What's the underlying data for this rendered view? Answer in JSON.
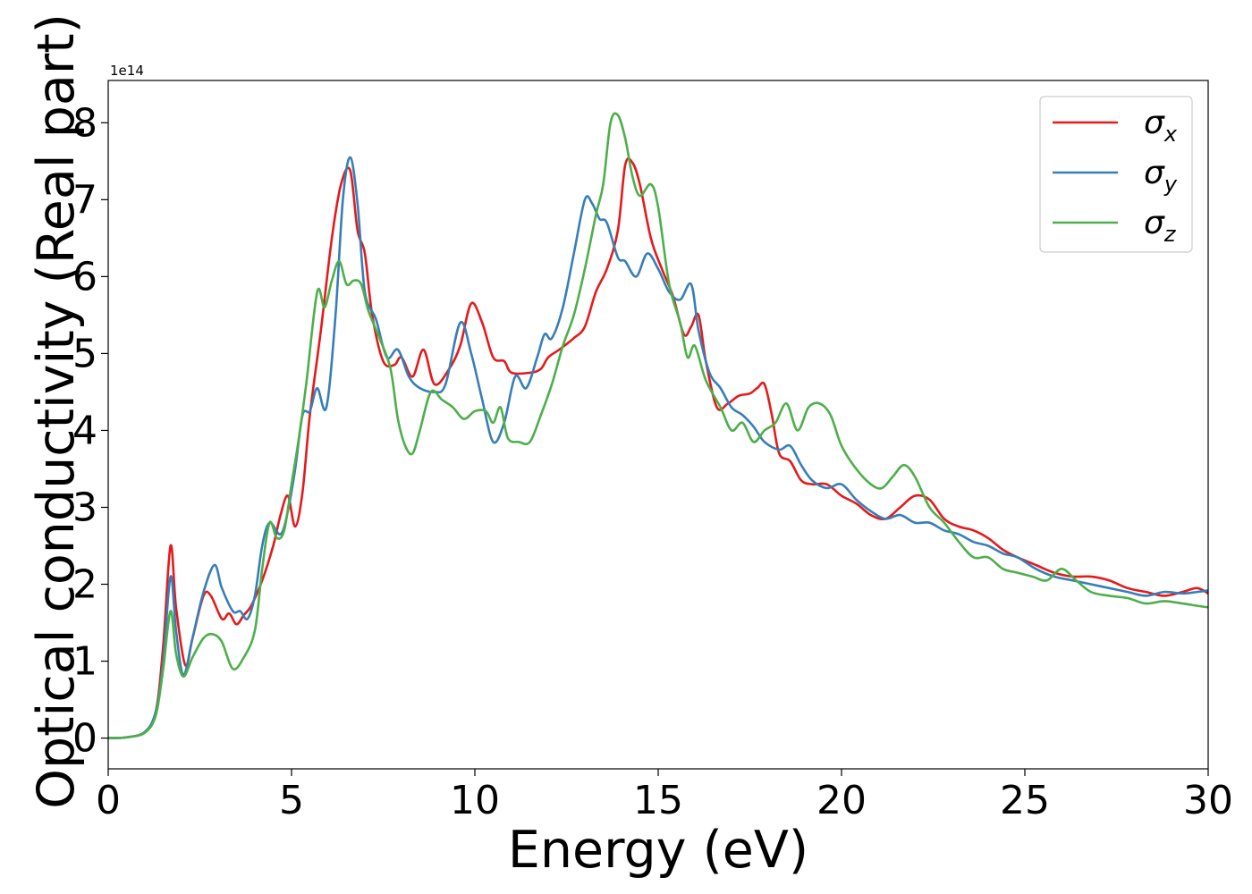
{
  "chart_data": {
    "type": "line",
    "title": "",
    "xlabel": "Energy (eV)",
    "ylabel": "Optical conductivity (Real part)",
    "y_offset_label": "1e14",
    "xlim": [
      0,
      30
    ],
    "ylim": [
      -0.4,
      8.55
    ],
    "y_scale": 100000000000000.0,
    "grid": false,
    "legend_position": "top-right",
    "x_ticks": [
      0,
      5,
      10,
      15,
      20,
      25,
      30
    ],
    "y_ticks": [
      0,
      1,
      2,
      3,
      4,
      5,
      6,
      7,
      8
    ],
    "x_tick_labels": [
      "0",
      "5",
      "10",
      "15",
      "20",
      "25",
      "30"
    ],
    "y_tick_labels": [
      "0",
      "1",
      "2",
      "3",
      "4",
      "5",
      "6",
      "7",
      "8"
    ],
    "series": [
      {
        "name": "σx",
        "legend_symbol": "σ",
        "legend_subscript": "x",
        "color": "#e41a1c",
        "points": [
          [
            0,
            0
          ],
          [
            0.5,
            0.01
          ],
          [
            1.0,
            0.08
          ],
          [
            1.3,
            0.35
          ],
          [
            1.5,
            1.2
          ],
          [
            1.7,
            2.5
          ],
          [
            1.85,
            1.7
          ],
          [
            2.1,
            0.95
          ],
          [
            2.3,
            1.3
          ],
          [
            2.6,
            1.85
          ],
          [
            2.8,
            1.85
          ],
          [
            3.1,
            1.55
          ],
          [
            3.3,
            1.62
          ],
          [
            3.5,
            1.48
          ],
          [
            3.7,
            1.6
          ],
          [
            3.9,
            1.72
          ],
          [
            4.2,
            2.05
          ],
          [
            4.5,
            2.5
          ],
          [
            4.7,
            2.9
          ],
          [
            4.9,
            3.15
          ],
          [
            5.1,
            2.75
          ],
          [
            5.3,
            3.2
          ],
          [
            5.5,
            4.2
          ],
          [
            5.8,
            5.3
          ],
          [
            6.1,
            6.5
          ],
          [
            6.35,
            7.2
          ],
          [
            6.6,
            7.38
          ],
          [
            6.8,
            6.6
          ],
          [
            7.0,
            6.3
          ],
          [
            7.2,
            5.5
          ],
          [
            7.5,
            4.9
          ],
          [
            7.8,
            4.85
          ],
          [
            8.0,
            4.95
          ],
          [
            8.3,
            4.7
          ],
          [
            8.6,
            5.05
          ],
          [
            8.9,
            4.6
          ],
          [
            9.3,
            4.8
          ],
          [
            9.6,
            5.1
          ],
          [
            9.9,
            5.65
          ],
          [
            10.2,
            5.4
          ],
          [
            10.5,
            4.95
          ],
          [
            10.8,
            4.9
          ],
          [
            11.0,
            4.75
          ],
          [
            11.5,
            4.75
          ],
          [
            11.8,
            4.8
          ],
          [
            12.0,
            4.95
          ],
          [
            12.3,
            5.05
          ],
          [
            12.7,
            5.2
          ],
          [
            13.0,
            5.35
          ],
          [
            13.3,
            5.8
          ],
          [
            13.6,
            6.1
          ],
          [
            13.9,
            6.6
          ],
          [
            14.1,
            7.45
          ],
          [
            14.3,
            7.48
          ],
          [
            14.5,
            7.2
          ],
          [
            14.8,
            6.5
          ],
          [
            15.1,
            6.1
          ],
          [
            15.4,
            5.75
          ],
          [
            15.7,
            5.25
          ],
          [
            15.9,
            5.35
          ],
          [
            16.1,
            5.5
          ],
          [
            16.3,
            4.9
          ],
          [
            16.6,
            4.3
          ],
          [
            16.9,
            4.35
          ],
          [
            17.2,
            4.45
          ],
          [
            17.5,
            4.48
          ],
          [
            17.7,
            4.55
          ],
          [
            17.9,
            4.6
          ],
          [
            18.1,
            4.2
          ],
          [
            18.3,
            3.7
          ],
          [
            18.6,
            3.6
          ],
          [
            18.9,
            3.35
          ],
          [
            19.2,
            3.3
          ],
          [
            19.6,
            3.3
          ],
          [
            20.0,
            3.15
          ],
          [
            20.4,
            3.05
          ],
          [
            20.8,
            2.9
          ],
          [
            21.2,
            2.85
          ],
          [
            21.6,
            3.0
          ],
          [
            22.0,
            3.15
          ],
          [
            22.4,
            3.1
          ],
          [
            22.8,
            2.85
          ],
          [
            23.2,
            2.75
          ],
          [
            23.6,
            2.7
          ],
          [
            24.0,
            2.6
          ],
          [
            24.4,
            2.45
          ],
          [
            24.8,
            2.35
          ],
          [
            25.3,
            2.25
          ],
          [
            25.8,
            2.15
          ],
          [
            26.3,
            2.1
          ],
          [
            26.8,
            2.1
          ],
          [
            27.3,
            2.05
          ],
          [
            27.8,
            1.95
          ],
          [
            28.3,
            1.9
          ],
          [
            28.8,
            1.85
          ],
          [
            29.3,
            1.9
          ],
          [
            29.7,
            1.95
          ],
          [
            30.0,
            1.88
          ]
        ]
      },
      {
        "name": "σy",
        "legend_symbol": "σ",
        "legend_subscript": "y",
        "color": "#377eb8",
        "points": [
          [
            0,
            0
          ],
          [
            0.5,
            0.01
          ],
          [
            1.0,
            0.08
          ],
          [
            1.3,
            0.35
          ],
          [
            1.5,
            1.0
          ],
          [
            1.7,
            2.1
          ],
          [
            1.85,
            1.4
          ],
          [
            2.05,
            0.82
          ],
          [
            2.3,
            1.3
          ],
          [
            2.6,
            1.9
          ],
          [
            2.9,
            2.25
          ],
          [
            3.1,
            1.95
          ],
          [
            3.4,
            1.65
          ],
          [
            3.6,
            1.65
          ],
          [
            3.8,
            1.55
          ],
          [
            4.0,
            1.85
          ],
          [
            4.2,
            2.5
          ],
          [
            4.4,
            2.8
          ],
          [
            4.7,
            2.65
          ],
          [
            4.9,
            2.95
          ],
          [
            5.1,
            3.5
          ],
          [
            5.3,
            4.2
          ],
          [
            5.5,
            4.25
          ],
          [
            5.7,
            4.55
          ],
          [
            5.95,
            4.3
          ],
          [
            6.2,
            5.5
          ],
          [
            6.4,
            7.0
          ],
          [
            6.6,
            7.55
          ],
          [
            6.8,
            6.95
          ],
          [
            7.0,
            5.8
          ],
          [
            7.3,
            5.45
          ],
          [
            7.6,
            4.95
          ],
          [
            7.9,
            5.05
          ],
          [
            8.2,
            4.7
          ],
          [
            8.5,
            4.55
          ],
          [
            8.9,
            4.5
          ],
          [
            9.2,
            4.6
          ],
          [
            9.6,
            5.4
          ],
          [
            9.9,
            5.0
          ],
          [
            10.2,
            4.4
          ],
          [
            10.5,
            3.85
          ],
          [
            10.8,
            4.1
          ],
          [
            11.1,
            4.7
          ],
          [
            11.4,
            4.55
          ],
          [
            11.7,
            4.95
          ],
          [
            11.9,
            5.25
          ],
          [
            12.1,
            5.2
          ],
          [
            12.4,
            5.6
          ],
          [
            12.7,
            6.3
          ],
          [
            13.0,
            7.0
          ],
          [
            13.2,
            6.95
          ],
          [
            13.4,
            6.75
          ],
          [
            13.6,
            6.7
          ],
          [
            13.9,
            6.25
          ],
          [
            14.1,
            6.2
          ],
          [
            14.4,
            6.0
          ],
          [
            14.7,
            6.3
          ],
          [
            15.0,
            6.1
          ],
          [
            15.3,
            5.8
          ],
          [
            15.6,
            5.7
          ],
          [
            15.9,
            5.9
          ],
          [
            16.1,
            5.3
          ],
          [
            16.4,
            4.75
          ],
          [
            16.7,
            4.55
          ],
          [
            17.0,
            4.3
          ],
          [
            17.3,
            4.2
          ],
          [
            17.6,
            4.05
          ],
          [
            17.9,
            3.85
          ],
          [
            18.3,
            3.75
          ],
          [
            18.6,
            3.8
          ],
          [
            18.9,
            3.55
          ],
          [
            19.2,
            3.35
          ],
          [
            19.6,
            3.25
          ],
          [
            20.0,
            3.3
          ],
          [
            20.4,
            3.1
          ],
          [
            20.8,
            2.95
          ],
          [
            21.2,
            2.85
          ],
          [
            21.6,
            2.9
          ],
          [
            22.0,
            2.8
          ],
          [
            22.4,
            2.8
          ],
          [
            22.8,
            2.7
          ],
          [
            23.2,
            2.65
          ],
          [
            23.6,
            2.55
          ],
          [
            24.0,
            2.5
          ],
          [
            24.4,
            2.4
          ],
          [
            24.8,
            2.35
          ],
          [
            25.3,
            2.2
          ],
          [
            25.8,
            2.1
          ],
          [
            26.3,
            2.05
          ],
          [
            26.8,
            2.0
          ],
          [
            27.3,
            1.95
          ],
          [
            27.8,
            1.9
          ],
          [
            28.3,
            1.85
          ],
          [
            28.8,
            1.9
          ],
          [
            29.3,
            1.88
          ],
          [
            29.7,
            1.9
          ],
          [
            30.0,
            1.92
          ]
        ]
      },
      {
        "name": "σz",
        "legend_symbol": "σ",
        "legend_subscript": "z",
        "color": "#4daf4a",
        "points": [
          [
            0,
            0
          ],
          [
            0.5,
            0.01
          ],
          [
            1.0,
            0.07
          ],
          [
            1.3,
            0.3
          ],
          [
            1.5,
            0.9
          ],
          [
            1.7,
            1.65
          ],
          [
            1.85,
            1.1
          ],
          [
            2.05,
            0.8
          ],
          [
            2.3,
            1.05
          ],
          [
            2.6,
            1.3
          ],
          [
            2.85,
            1.35
          ],
          [
            3.1,
            1.25
          ],
          [
            3.4,
            0.9
          ],
          [
            3.7,
            1.05
          ],
          [
            4.0,
            1.4
          ],
          [
            4.2,
            2.2
          ],
          [
            4.4,
            2.8
          ],
          [
            4.6,
            2.6
          ],
          [
            4.8,
            2.7
          ],
          [
            5.0,
            3.3
          ],
          [
            5.2,
            3.9
          ],
          [
            5.4,
            4.6
          ],
          [
            5.7,
            5.8
          ],
          [
            5.9,
            5.6
          ],
          [
            6.1,
            5.95
          ],
          [
            6.3,
            6.2
          ],
          [
            6.5,
            5.9
          ],
          [
            6.7,
            5.95
          ],
          [
            6.9,
            5.9
          ],
          [
            7.1,
            5.55
          ],
          [
            7.4,
            5.2
          ],
          [
            7.7,
            4.8
          ],
          [
            7.9,
            4.15
          ],
          [
            8.1,
            3.8
          ],
          [
            8.3,
            3.7
          ],
          [
            8.5,
            4.0
          ],
          [
            8.8,
            4.5
          ],
          [
            9.1,
            4.4
          ],
          [
            9.4,
            4.3
          ],
          [
            9.7,
            4.15
          ],
          [
            10.0,
            4.25
          ],
          [
            10.3,
            4.25
          ],
          [
            10.5,
            4.1
          ],
          [
            10.7,
            4.3
          ],
          [
            10.9,
            3.9
          ],
          [
            11.2,
            3.85
          ],
          [
            11.5,
            3.85
          ],
          [
            11.8,
            4.2
          ],
          [
            12.1,
            4.6
          ],
          [
            12.4,
            5.1
          ],
          [
            12.7,
            5.5
          ],
          [
            13.0,
            6.1
          ],
          [
            13.3,
            6.8
          ],
          [
            13.5,
            7.2
          ],
          [
            13.7,
            8.0
          ],
          [
            13.9,
            8.1
          ],
          [
            14.1,
            7.8
          ],
          [
            14.3,
            7.3
          ],
          [
            14.5,
            7.05
          ],
          [
            14.8,
            7.2
          ],
          [
            15.0,
            6.9
          ],
          [
            15.3,
            5.9
          ],
          [
            15.6,
            5.4
          ],
          [
            15.8,
            4.95
          ],
          [
            16.0,
            5.1
          ],
          [
            16.3,
            4.65
          ],
          [
            16.7,
            4.3
          ],
          [
            17.0,
            4.0
          ],
          [
            17.3,
            4.1
          ],
          [
            17.6,
            3.85
          ],
          [
            17.9,
            4.0
          ],
          [
            18.2,
            4.1
          ],
          [
            18.5,
            4.35
          ],
          [
            18.8,
            4.0
          ],
          [
            19.1,
            4.3
          ],
          [
            19.4,
            4.35
          ],
          [
            19.7,
            4.2
          ],
          [
            20.0,
            3.8
          ],
          [
            20.4,
            3.5
          ],
          [
            20.8,
            3.3
          ],
          [
            21.1,
            3.25
          ],
          [
            21.4,
            3.4
          ],
          [
            21.7,
            3.55
          ],
          [
            22.0,
            3.4
          ],
          [
            22.4,
            3.0
          ],
          [
            22.8,
            2.8
          ],
          [
            23.2,
            2.55
          ],
          [
            23.6,
            2.35
          ],
          [
            24.0,
            2.35
          ],
          [
            24.4,
            2.2
          ],
          [
            24.8,
            2.15
          ],
          [
            25.2,
            2.1
          ],
          [
            25.6,
            2.05
          ],
          [
            26.0,
            2.2
          ],
          [
            26.4,
            2.05
          ],
          [
            26.8,
            1.9
          ],
          [
            27.3,
            1.85
          ],
          [
            27.8,
            1.82
          ],
          [
            28.3,
            1.75
          ],
          [
            28.8,
            1.78
          ],
          [
            29.3,
            1.75
          ],
          [
            29.7,
            1.72
          ],
          [
            30.0,
            1.7
          ]
        ]
      }
    ]
  }
}
